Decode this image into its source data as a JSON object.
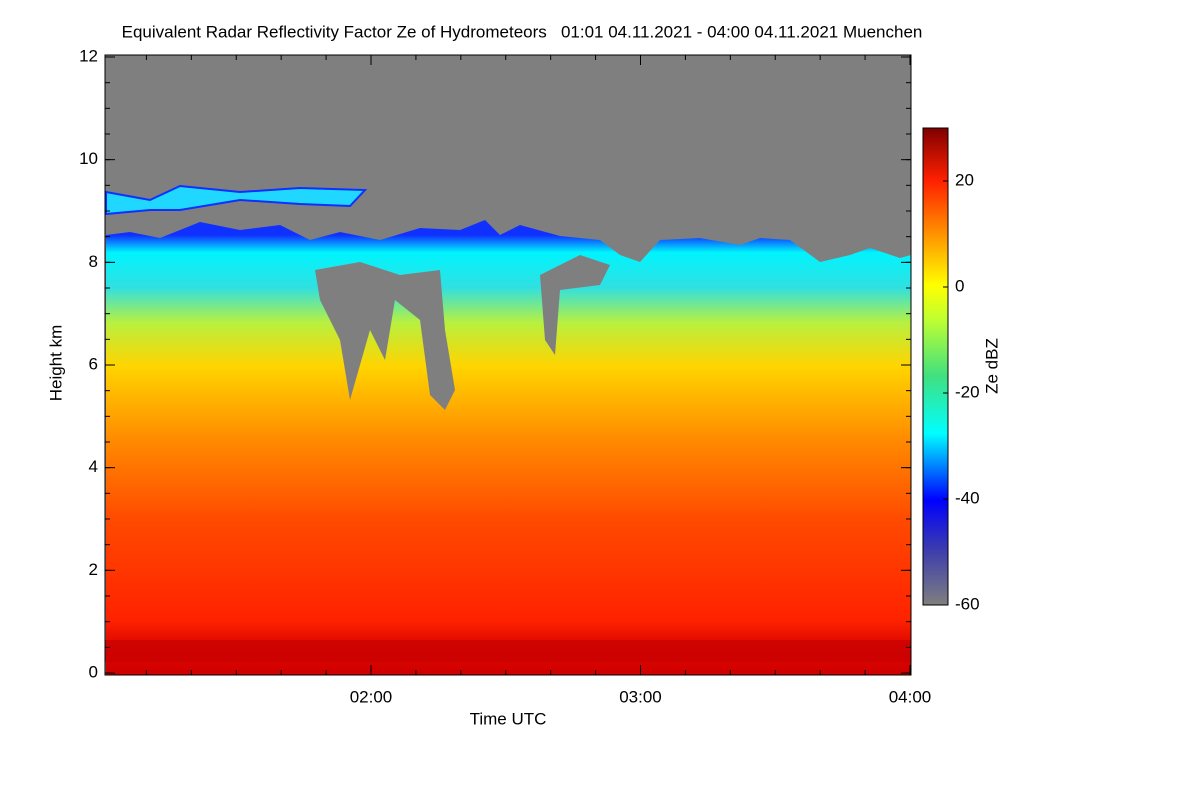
{
  "chart_data": {
    "type": "heatmap",
    "title": "Equivalent Radar Reflectivity Factor Ze of Hydrometeors   01:01 04.11.2021 - 04:00 04.11.2021 Muenchen",
    "xlabel": "Time UTC",
    "ylabel": "Height km",
    "colorbar_label": "Ze dBZ",
    "xlim": [
      "01:01",
      "04:00"
    ],
    "xticks": [
      "02:00",
      "03:00",
      "04:00"
    ],
    "ylim": [
      0,
      12
    ],
    "yticks": [
      0,
      2,
      4,
      6,
      8,
      10,
      12
    ],
    "zlim": [
      -60,
      30
    ],
    "zticks": [
      -60,
      -40,
      -20,
      0,
      20
    ]
  }
}
